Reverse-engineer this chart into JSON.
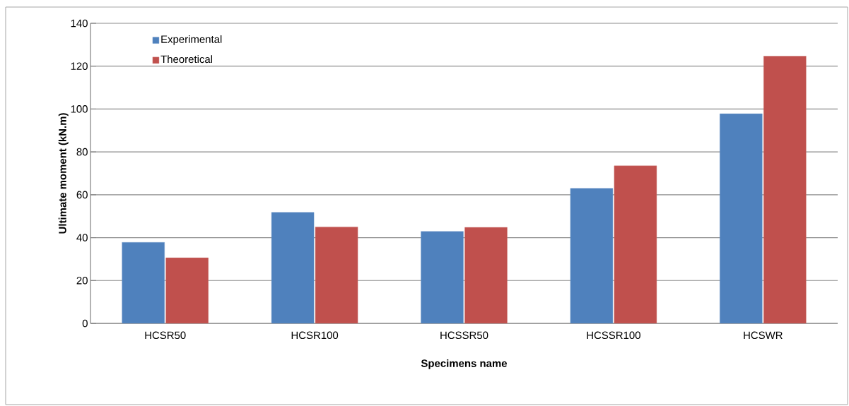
{
  "chart_data": {
    "type": "bar",
    "xlabel": "Specimens name",
    "ylabel": "Ultimate moment (kN.m)",
    "categories": [
      "HCSR50",
      "HCSR100",
      "HCSSR50",
      "HCSSR100",
      "HCSWR"
    ],
    "series": [
      {
        "name": "Experimental",
        "color": "#4f81bd",
        "values": [
          37.8,
          51.8,
          42.9,
          63.0,
          97.8
        ]
      },
      {
        "name": "Theoretical",
        "color": "#c0504d",
        "values": [
          30.6,
          45.0,
          44.8,
          73.5,
          124.7
        ]
      }
    ],
    "ylim": [
      0,
      140
    ],
    "yticks": [
      0,
      20,
      40,
      60,
      80,
      100,
      120,
      140
    ],
    "grid": "y",
    "legend": "top left"
  }
}
